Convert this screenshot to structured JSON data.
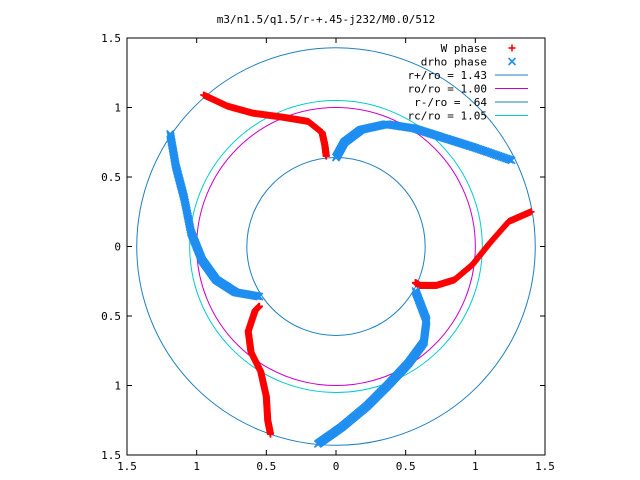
{
  "chart_data": {
    "type": "scatter",
    "title": "m3/n1.5/q1.5/r-+.45-j232/M0.0/512",
    "xlim": [
      -1.5,
      1.5
    ],
    "ylim": [
      -1.5,
      1.5
    ],
    "x_ticks": [
      -1.5,
      -1,
      -0.5,
      0,
      0.5,
      1,
      1.5
    ],
    "x_tick_labels": [
      "1.5",
      "1",
      "0.5",
      "0",
      "0.5",
      "1",
      "1.5"
    ],
    "y_ticks": [
      1.5,
      1,
      0.5,
      0,
      -0.5,
      -1,
      -1.5
    ],
    "y_tick_labels": [
      "1.5",
      "1",
      "0.5",
      "0",
      "0.5",
      "1",
      "1.5"
    ],
    "grid": false,
    "legend_position": "top-right",
    "series": [
      {
        "name": "W phase",
        "marker": "+",
        "color": "#ff0000",
        "segments": [
          [
            [
              -0.95,
              1.09
            ],
            [
              -0.78,
              1.01
            ],
            [
              -0.6,
              0.96
            ],
            [
              -0.38,
              0.93
            ],
            [
              -0.2,
              0.9
            ],
            [
              -0.1,
              0.82
            ],
            [
              -0.08,
              0.73
            ],
            [
              -0.07,
              0.65
            ]
          ],
          [
            [
              1.4,
              0.25
            ],
            [
              1.24,
              0.18
            ],
            [
              1.1,
              0.02
            ],
            [
              0.98,
              -0.13
            ],
            [
              0.85,
              -0.24
            ],
            [
              0.72,
              -0.28
            ],
            [
              0.6,
              -0.28
            ],
            [
              0.57,
              -0.26
            ]
          ],
          [
            [
              -0.47,
              -1.35
            ],
            [
              -0.49,
              -1.25
            ],
            [
              -0.5,
              -1.08
            ],
            [
              -0.54,
              -0.9
            ],
            [
              -0.61,
              -0.76
            ],
            [
              -0.63,
              -0.61
            ],
            [
              -0.58,
              -0.46
            ],
            [
              -0.55,
              -0.43
            ]
          ]
        ]
      },
      {
        "name": "drho phase",
        "marker": "x",
        "color": "#1f8ef0",
        "segments": [
          [
            [
              0.0,
              0.64
            ],
            [
              0.06,
              0.75
            ],
            [
              0.18,
              0.84
            ],
            [
              0.36,
              0.88
            ],
            [
              0.56,
              0.85
            ],
            [
              0.78,
              0.78
            ],
            [
              1.0,
              0.71
            ],
            [
              1.26,
              0.62
            ]
          ],
          [
            [
              -1.19,
              0.81
            ],
            [
              -1.15,
              0.58
            ],
            [
              -1.09,
              0.35
            ],
            [
              -1.04,
              0.1
            ],
            [
              -0.96,
              -0.1
            ],
            [
              -0.86,
              -0.24
            ],
            [
              -0.72,
              -0.33
            ],
            [
              -0.55,
              -0.36
            ]
          ],
          [
            [
              -0.13,
              -1.42
            ],
            [
              0.04,
              -1.3
            ],
            [
              0.22,
              -1.15
            ],
            [
              0.38,
              -0.99
            ],
            [
              0.52,
              -0.84
            ],
            [
              0.63,
              -0.69
            ],
            [
              0.65,
              -0.53
            ],
            [
              0.57,
              -0.32
            ]
          ]
        ]
      }
    ],
    "circles": [
      {
        "name": "r+/ro = 1.43",
        "radius": 1.43,
        "color": "#1f7fbf"
      },
      {
        "name": "ro/ro = 1.00",
        "radius": 1.0,
        "color": "#cc00cc"
      },
      {
        "name": "r-/ro = .64",
        "radius": 0.64,
        "color": "#1f7fbf"
      },
      {
        "name": "rc/ro = 1.05",
        "radius": 1.05,
        "color": "#00cccc"
      }
    ]
  }
}
